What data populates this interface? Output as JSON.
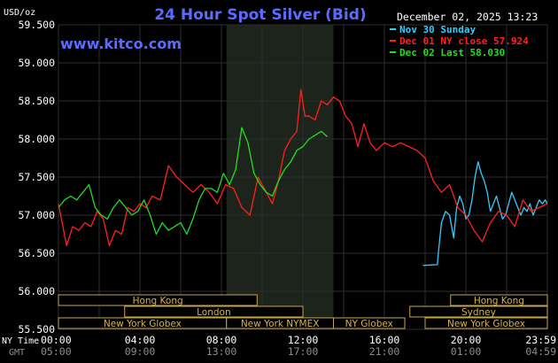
{
  "chart_data": {
    "type": "line",
    "title": "24 Hour Spot Silver (Bid)",
    "ylabel": "USD/oz",
    "watermark": "www.kitco.com",
    "date_label": "December 02, 2025 13:23",
    "ylim": [
      55.5,
      59.5
    ],
    "yticks": [
      "59.500",
      "59.000",
      "58.500",
      "58.000",
      "57.500",
      "57.000",
      "56.500",
      "56.000",
      "55.500"
    ],
    "xlim": [
      0,
      24
    ],
    "x_labels": {
      "ny_time_label": "NY Time",
      "gmt_label": "GMT",
      "ny_time": [
        "00:00",
        "04:00",
        "08:00",
        "12:00",
        "16:00",
        "20:00",
        "23:59"
      ],
      "gmt": [
        "05:00",
        "09:00",
        "13:00",
        "17:00",
        "21:00",
        "01:00",
        "04:59"
      ]
    },
    "grid": true,
    "legend_position": "top-right",
    "highlight_range_hours": [
      8.25,
      13.5
    ],
    "markets": [
      {
        "name": "Hong Kong",
        "row": 0,
        "start": 0,
        "end": 9.75
      },
      {
        "name": "Hong Kong",
        "row": 0,
        "start": 19.25,
        "end": 24
      },
      {
        "name": "London",
        "row": 1,
        "start": 3.25,
        "end": 12.0
      },
      {
        "name": "Sydney",
        "row": 1,
        "start": 17.25,
        "end": 24
      },
      {
        "name": "New York Globex",
        "row": 2,
        "start": 0,
        "end": 8.25
      },
      {
        "name": "New York NYMEX",
        "row": 2,
        "start": 8.25,
        "end": 13.5
      },
      {
        "name": "NY Globex",
        "row": 2,
        "start": 13.5,
        "end": 17.0
      },
      {
        "name": "New York Globex",
        "row": 2,
        "start": 18.0,
        "end": 24
      }
    ],
    "series": [
      {
        "name": "Nov 30 Sunday",
        "color": "#33ccff",
        "x": [
          17.9,
          18.6,
          18.65,
          18.8,
          19.0,
          19.2,
          19.4,
          19.55,
          19.7,
          19.85,
          20.0,
          20.15,
          20.3,
          20.45,
          20.6,
          20.75,
          20.9,
          21.05,
          21.2,
          21.35,
          21.5,
          21.65,
          21.8,
          21.95,
          22.1,
          22.25,
          22.4,
          22.55,
          22.7,
          22.85,
          23.0,
          23.15,
          23.3,
          23.45,
          23.6,
          23.75,
          23.9,
          23.99
        ],
        "values": [
          56.34,
          56.35,
          56.5,
          56.9,
          57.05,
          57.0,
          56.7,
          57.1,
          57.25,
          57.15,
          56.95,
          57.0,
          57.2,
          57.5,
          57.7,
          57.55,
          57.45,
          57.3,
          57.05,
          57.15,
          57.25,
          57.1,
          56.95,
          57.0,
          57.15,
          57.3,
          57.2,
          57.1,
          57.0,
          57.1,
          57.05,
          57.15,
          57.0,
          57.1,
          57.2,
          57.15,
          57.2,
          57.15
        ]
      },
      {
        "name": "Dec 01 NY close 57.924",
        "color": "#ff2020",
        "x": [
          0.0,
          0.4,
          0.7,
          1.0,
          1.3,
          1.6,
          1.9,
          2.2,
          2.5,
          2.8,
          3.1,
          3.4,
          3.7,
          4.0,
          4.3,
          4.6,
          5.0,
          5.4,
          5.8,
          6.2,
          6.6,
          7.0,
          7.4,
          7.8,
          8.2,
          8.6,
          9.0,
          9.4,
          9.8,
          10.2,
          10.5,
          10.8,
          11.1,
          11.4,
          11.7,
          11.9,
          12.1,
          12.3,
          12.6,
          12.9,
          13.2,
          13.5,
          13.8,
          14.1,
          14.4,
          14.7,
          15.0,
          15.3,
          15.6,
          16.0,
          16.4,
          16.8,
          17.2,
          17.6,
          18.0,
          18.4,
          18.8,
          19.2,
          19.6,
          20.0,
          20.4,
          20.8,
          21.2,
          21.6,
          22.0,
          22.4,
          22.8,
          23.2,
          23.6,
          23.99
        ],
        "values": [
          57.15,
          56.6,
          56.85,
          56.8,
          56.9,
          56.85,
          57.05,
          56.95,
          56.6,
          56.8,
          56.75,
          57.1,
          57.05,
          57.15,
          57.1,
          57.25,
          57.2,
          57.65,
          57.5,
          57.4,
          57.3,
          57.4,
          57.3,
          57.15,
          57.4,
          57.35,
          57.1,
          57.0,
          57.5,
          57.3,
          57.15,
          57.45,
          57.85,
          58.0,
          58.1,
          58.65,
          58.3,
          58.3,
          58.25,
          58.5,
          58.45,
          58.55,
          58.5,
          58.3,
          58.2,
          57.9,
          58.2,
          57.95,
          57.85,
          57.95,
          57.9,
          57.95,
          57.9,
          57.85,
          57.75,
          57.45,
          57.3,
          57.4,
          57.1,
          57.0,
          56.8,
          56.65,
          56.9,
          57.05,
          57.0,
          56.85,
          57.2,
          57.05,
          57.1,
          57.15
        ]
      },
      {
        "name": "Dec 02 Last 58.030",
        "color": "#22dd22",
        "x": [
          0.0,
          0.3,
          0.6,
          0.9,
          1.2,
          1.5,
          1.8,
          2.1,
          2.4,
          2.7,
          3.0,
          3.3,
          3.6,
          3.9,
          4.2,
          4.5,
          4.8,
          5.1,
          5.4,
          5.7,
          6.0,
          6.3,
          6.6,
          6.9,
          7.2,
          7.5,
          7.8,
          8.1,
          8.4,
          8.7,
          9.0,
          9.3,
          9.6,
          9.9,
          10.2,
          10.5,
          10.8,
          11.1,
          11.4,
          11.7,
          12.0,
          12.3,
          12.6,
          12.9,
          13.2
        ],
        "values": [
          57.1,
          57.2,
          57.25,
          57.2,
          57.3,
          57.4,
          57.1,
          57.0,
          56.95,
          57.1,
          57.2,
          57.1,
          57.0,
          57.05,
          57.2,
          57.0,
          56.75,
          56.9,
          56.8,
          56.85,
          56.9,
          56.75,
          56.95,
          57.2,
          57.35,
          57.35,
          57.3,
          57.55,
          57.4,
          57.6,
          58.15,
          57.95,
          57.55,
          57.4,
          57.3,
          57.25,
          57.45,
          57.6,
          57.7,
          57.85,
          57.9,
          58.0,
          58.05,
          58.1,
          58.03
        ]
      }
    ]
  }
}
